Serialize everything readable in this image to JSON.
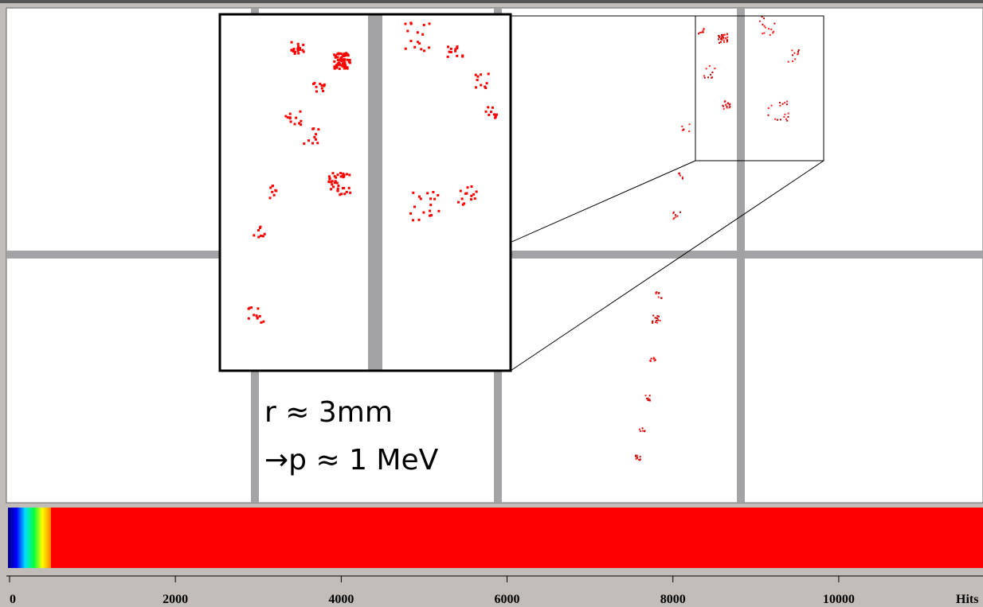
{
  "annotation": [
    "r ≈ 3mm",
    "→p ≈ 1 MeV"
  ],
  "colorbar": {
    "range": [
      0,
      11740
    ],
    "ticks": [
      0,
      2000,
      4000,
      6000,
      8000,
      10000
    ],
    "label": "Hits"
  }
}
